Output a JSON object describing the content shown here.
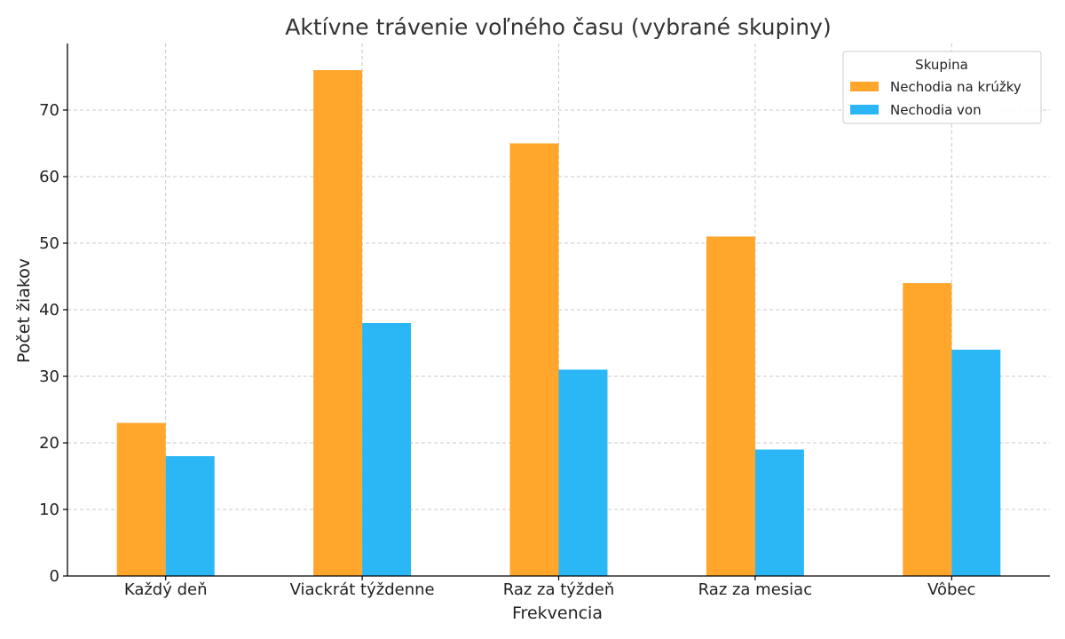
{
  "chart_data": {
    "type": "bar",
    "title": "Aktívne trávenie voľného času (vybrané skupiny)",
    "xlabel": "Frekvencia",
    "ylabel": "Počet žiakov",
    "categories": [
      "Každý deň",
      "Viackrát týždenne",
      "Raz za týždeň",
      "Raz za mesiac",
      "Vôbec"
    ],
    "series": [
      {
        "name": "Nechodia na krúžky",
        "color": "#FFA62B",
        "values": [
          23,
          76,
          65,
          51,
          44
        ]
      },
      {
        "name": "Nechodia von",
        "color": "#2BB7F5",
        "values": [
          18,
          38,
          31,
          19,
          34
        ]
      }
    ],
    "ylim": [
      0,
      80
    ],
    "yticks": [
      0,
      10,
      20,
      30,
      40,
      50,
      60,
      70
    ],
    "grid": true,
    "legend": {
      "title": "Skupina",
      "position": "top-right"
    }
  }
}
